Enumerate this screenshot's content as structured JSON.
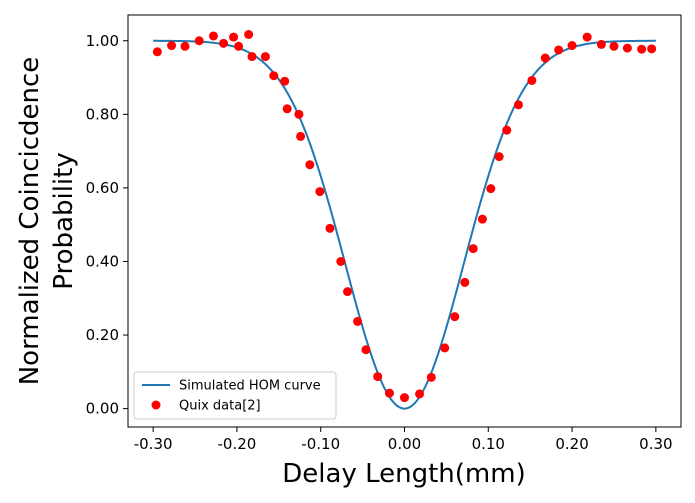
{
  "chart_data": {
    "type": "line+scatter",
    "xlabel": "Delay Length(mm)",
    "ylabel_lines": [
      "Normalized Coincicdence",
      "Probability"
    ],
    "xlim": [
      -0.33,
      0.33
    ],
    "ylim": [
      -0.05,
      1.07
    ],
    "x_ticks": [
      -0.3,
      -0.2,
      -0.1,
      0.0,
      0.1,
      0.2,
      0.3
    ],
    "x_tick_labels": [
      "-0.30",
      "-0.20",
      "-0.10",
      "0.00",
      "0.10",
      "0.20",
      "0.30"
    ],
    "y_ticks": [
      0.0,
      0.2,
      0.4,
      0.6,
      0.8,
      1.0
    ],
    "y_tick_labels": [
      "0.00",
      "0.20",
      "0.40",
      "0.60",
      "0.80",
      "1.00"
    ],
    "grid": false,
    "legend_position": "lower-left",
    "series": [
      {
        "name": "Simulated HOM curve",
        "kind": "line",
        "color": "#1f77b4",
        "model": "gaussian-dip",
        "sigma_mm": 0.0707,
        "x_range": [
          -0.3,
          0.3
        ]
      },
      {
        "name": "Quix data[2]",
        "kind": "scatter",
        "color": "#ff0000",
        "points": [
          [
            -0.295,
            0.97
          ],
          [
            -0.278,
            0.987
          ],
          [
            -0.262,
            0.985
          ],
          [
            -0.245,
            1.0
          ],
          [
            -0.228,
            1.013
          ],
          [
            -0.216,
            0.993
          ],
          [
            -0.204,
            1.01
          ],
          [
            -0.198,
            0.985
          ],
          [
            -0.186,
            1.017
          ],
          [
            -0.182,
            0.957
          ],
          [
            -0.166,
            0.957
          ],
          [
            -0.156,
            0.905
          ],
          [
            -0.143,
            0.89
          ],
          [
            -0.14,
            0.815
          ],
          [
            -0.126,
            0.8
          ],
          [
            -0.124,
            0.74
          ],
          [
            -0.113,
            0.663
          ],
          [
            -0.101,
            0.59
          ],
          [
            -0.089,
            0.49
          ],
          [
            -0.076,
            0.4
          ],
          [
            -0.068,
            0.318
          ],
          [
            -0.056,
            0.237
          ],
          [
            -0.046,
            0.16
          ],
          [
            -0.032,
            0.087
          ],
          [
            -0.018,
            0.042
          ],
          [
            0.0,
            0.03
          ],
          [
            0.018,
            0.04
          ],
          [
            0.032,
            0.085
          ],
          [
            0.048,
            0.165
          ],
          [
            0.06,
            0.25
          ],
          [
            0.072,
            0.343
          ],
          [
            0.082,
            0.435
          ],
          [
            0.093,
            0.515
          ],
          [
            0.103,
            0.598
          ],
          [
            0.113,
            0.685
          ],
          [
            0.122,
            0.757
          ],
          [
            0.136,
            0.826
          ],
          [
            0.152,
            0.892
          ],
          [
            0.168,
            0.953
          ],
          [
            0.184,
            0.975
          ],
          [
            0.2,
            0.987
          ],
          [
            0.218,
            1.01
          ],
          [
            0.235,
            0.99
          ],
          [
            0.25,
            0.985
          ],
          [
            0.266,
            0.98
          ],
          [
            0.283,
            0.977
          ],
          [
            0.295,
            0.978
          ]
        ]
      }
    ]
  }
}
